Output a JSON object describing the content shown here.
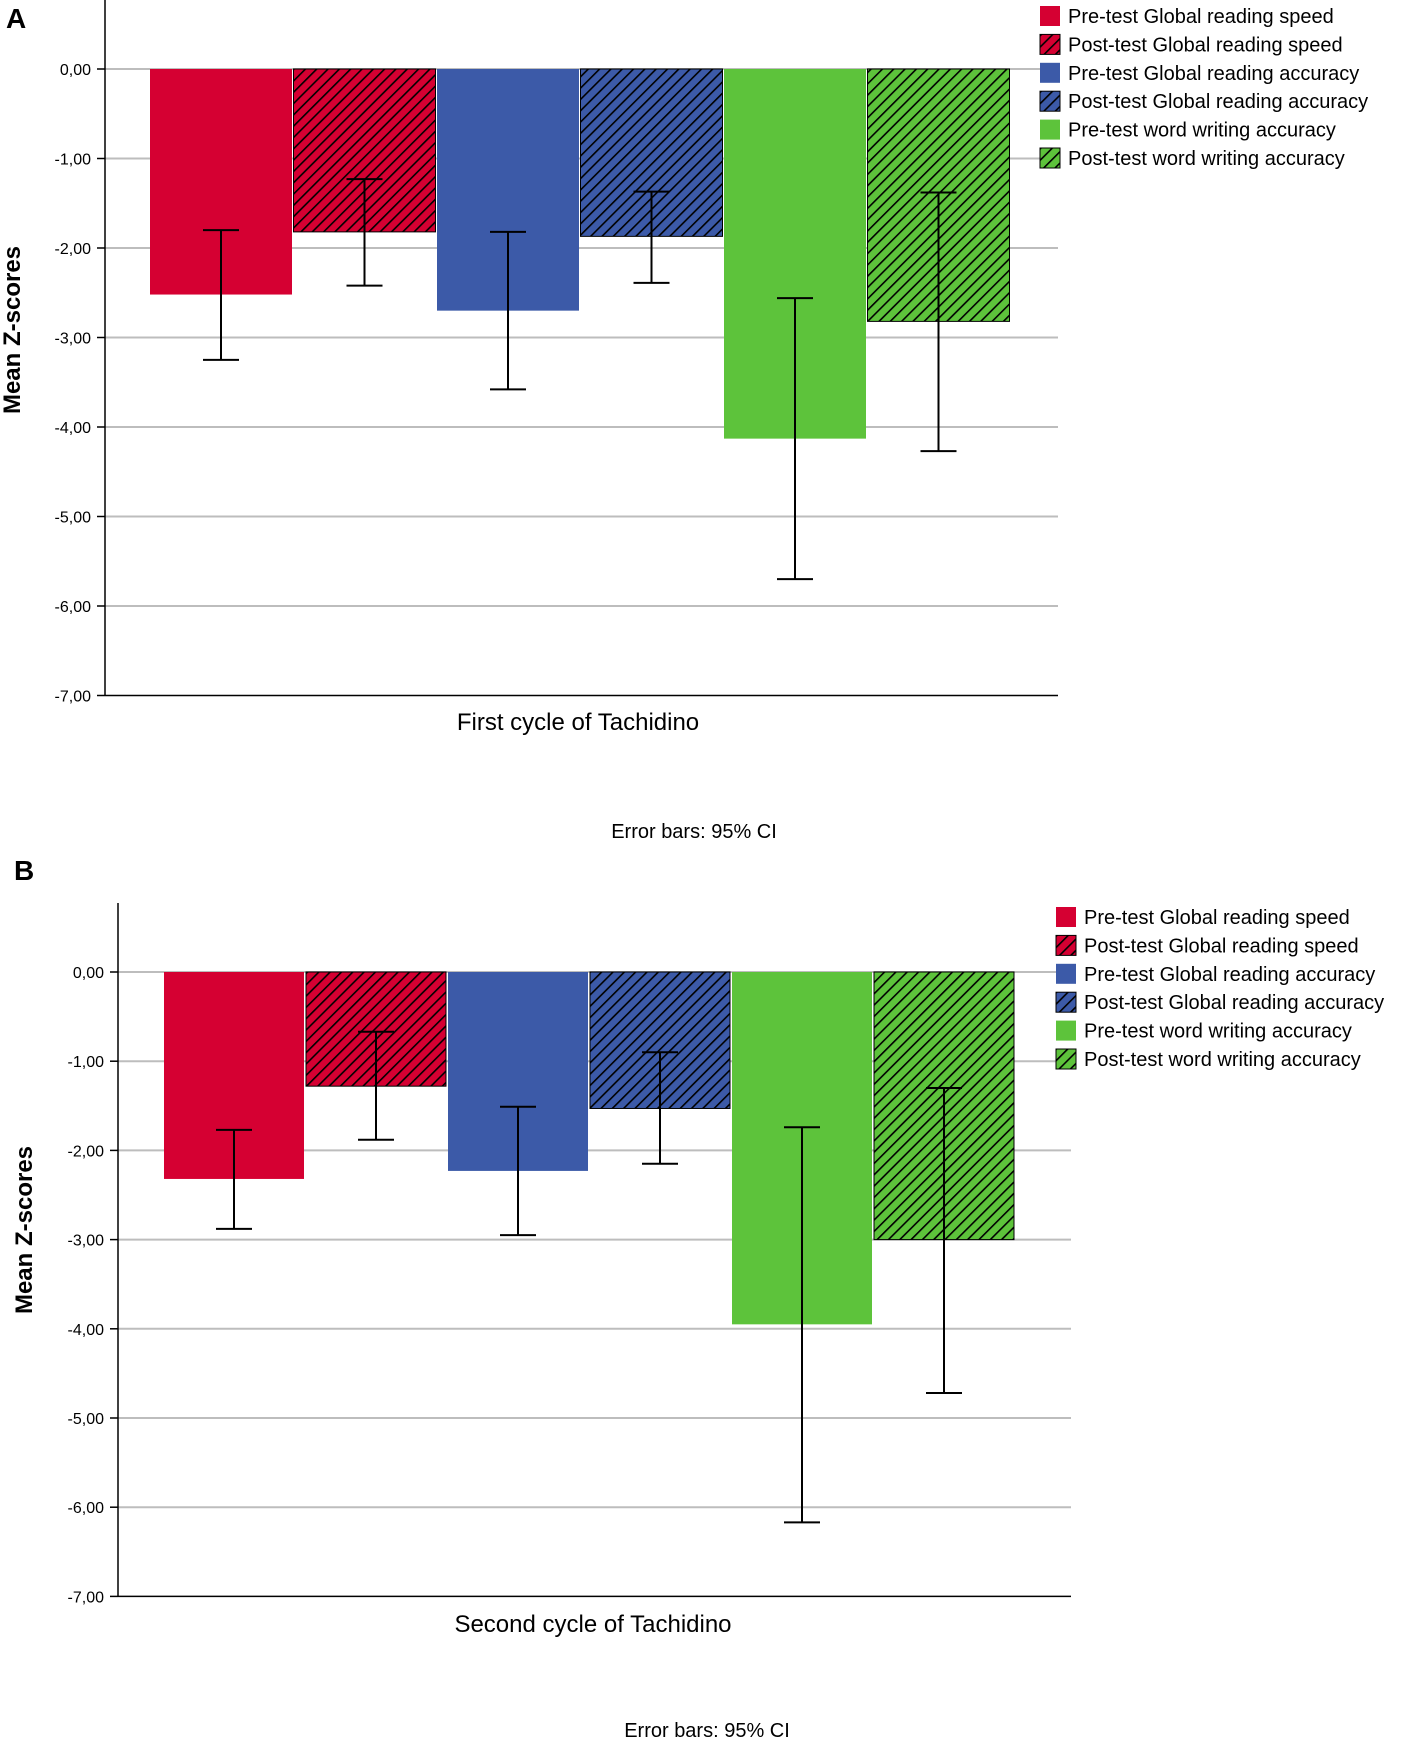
{
  "colors": {
    "red": "#D50032",
    "blue": "#3C5AA8",
    "green": "#5DC33B",
    "grid": "#BDBDBD",
    "axis": "#000000"
  },
  "chart_data": [
    {
      "panel_label": "A",
      "type": "bar",
      "ylabel": "Mean Z-scores",
      "xlabel": "First cycle of Tachidino",
      "note": "Error bars: 95% CI",
      "ylim": [
        -7,
        0.75
      ],
      "yticks": [
        "0,00",
        "-1,00",
        "-2,00",
        "-3,00",
        "-4,00",
        "-5,00",
        "-6,00",
        "-7,00"
      ],
      "ytick_values": [
        0,
        -1,
        -2,
        -3,
        -4,
        -5,
        -6,
        -7
      ],
      "legend_position": "top-right",
      "series": [
        {
          "name": "Pre-test Global reading speed",
          "color": "#D50032",
          "hatched": false,
          "value": -2.52,
          "ci": [
            -3.25,
            -1.8
          ]
        },
        {
          "name": "Post-test Global reading speed",
          "color": "#D50032",
          "hatched": true,
          "value": -1.82,
          "ci": [
            -2.42,
            -1.23
          ]
        },
        {
          "name": "Pre-test Global reading accuracy",
          "color": "#3C5AA8",
          "hatched": false,
          "value": -2.7,
          "ci": [
            -3.58,
            -1.82
          ]
        },
        {
          "name": "Post-test Global reading accuracy",
          "color": "#3C5AA8",
          "hatched": true,
          "value": -1.87,
          "ci": [
            -2.39,
            -1.37
          ]
        },
        {
          "name": "Pre-test word writing accuracy",
          "color": "#5DC33B",
          "hatched": false,
          "value": -4.13,
          "ci": [
            -5.7,
            -2.56
          ]
        },
        {
          "name": "Post-test word writing accuracy",
          "color": "#5DC33B",
          "hatched": true,
          "value": -2.82,
          "ci": [
            -4.27,
            -1.38
          ]
        }
      ]
    },
    {
      "panel_label": "B",
      "type": "bar",
      "ylabel": "Mean Z-scores",
      "xlabel": "Second cycle of Tachidino",
      "note": "Error bars: 95% CI",
      "ylim": [
        -7,
        0.75
      ],
      "yticks": [
        "0,00",
        "-1,00",
        "-2,00",
        "-3,00",
        "-4,00",
        "-5,00",
        "-6,00",
        "-7,00"
      ],
      "ytick_values": [
        0,
        -1,
        -2,
        -3,
        -4,
        -5,
        -6,
        -7
      ],
      "legend_position": "top-right",
      "series": [
        {
          "name": "Pre-test Global reading speed",
          "color": "#D50032",
          "hatched": false,
          "value": -2.32,
          "ci": [
            -2.88,
            -1.77
          ]
        },
        {
          "name": "Post-test Global reading speed",
          "color": "#D50032",
          "hatched": true,
          "value": -1.28,
          "ci": [
            -1.88,
            -0.67
          ]
        },
        {
          "name": "Pre-test Global reading accuracy",
          "color": "#3C5AA8",
          "hatched": false,
          "value": -2.23,
          "ci": [
            -2.95,
            -1.51
          ]
        },
        {
          "name": "Post-test Global reading accuracy",
          "color": "#3C5AA8",
          "hatched": true,
          "value": -1.53,
          "ci": [
            -2.15,
            -0.9
          ]
        },
        {
          "name": "Pre-test word writing accuracy",
          "color": "#5DC33B",
          "hatched": false,
          "value": -3.95,
          "ci": [
            -6.17,
            -1.74
          ]
        },
        {
          "name": "Post-test word writing accuracy",
          "color": "#5DC33B",
          "hatched": true,
          "value": -3.0,
          "ci": [
            -4.72,
            -1.3
          ]
        }
      ]
    }
  ]
}
